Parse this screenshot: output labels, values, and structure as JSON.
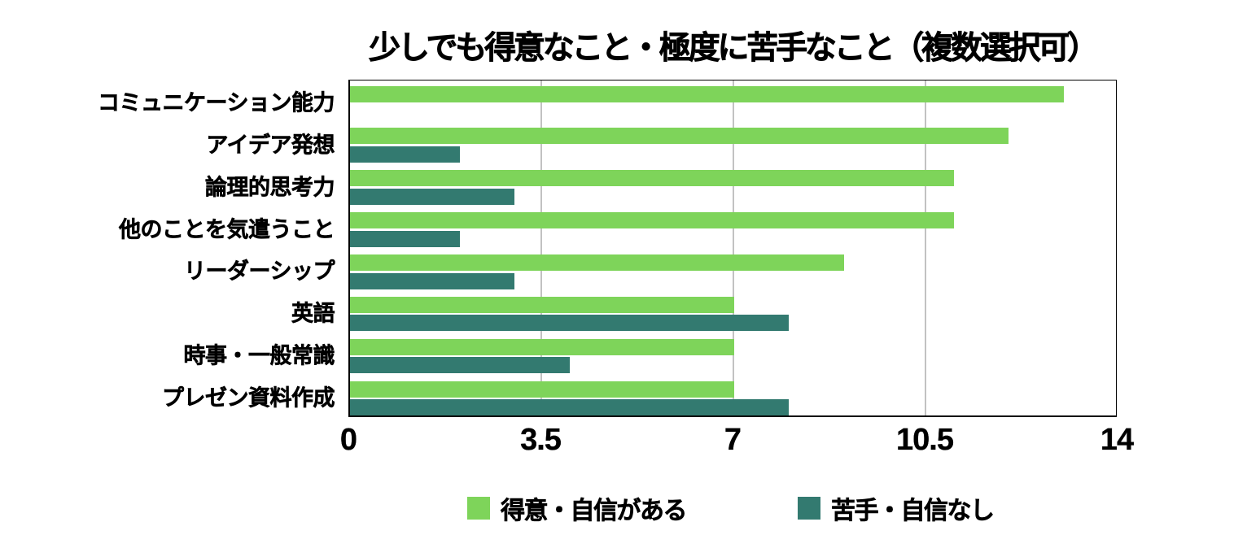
{
  "chart_data": {
    "type": "bar",
    "orientation": "horizontal",
    "title": "少しでも得意なこと・極度に苦手なこと（複数選択可）",
    "categories": [
      "コミュニケーション能力",
      "アイデア発想",
      "論理的思考力",
      "他のことを気遣うこと",
      "リーダーシップ",
      "英語",
      "時事・一般常識",
      "プレゼン資料作成"
    ],
    "series": [
      {
        "name": "得意・自信がある",
        "color": "#7ed45a",
        "values": [
          13,
          12,
          11,
          11,
          9,
          7,
          7,
          7
        ]
      },
      {
        "name": "苦手・自信なし",
        "color": "#337a70",
        "values": [
          0,
          2,
          3,
          2,
          3,
          8,
          4,
          8
        ]
      }
    ],
    "xlim": [
      0,
      14
    ],
    "xticks": [
      0,
      3.5,
      7,
      10.5,
      14
    ],
    "xtick_labels": [
      "0",
      "3.5",
      "7",
      "10.5",
      "14"
    ],
    "grid": "vertical-gridlines",
    "gridline_color": "#c2c2c2",
    "legend_position": "bottom"
  }
}
